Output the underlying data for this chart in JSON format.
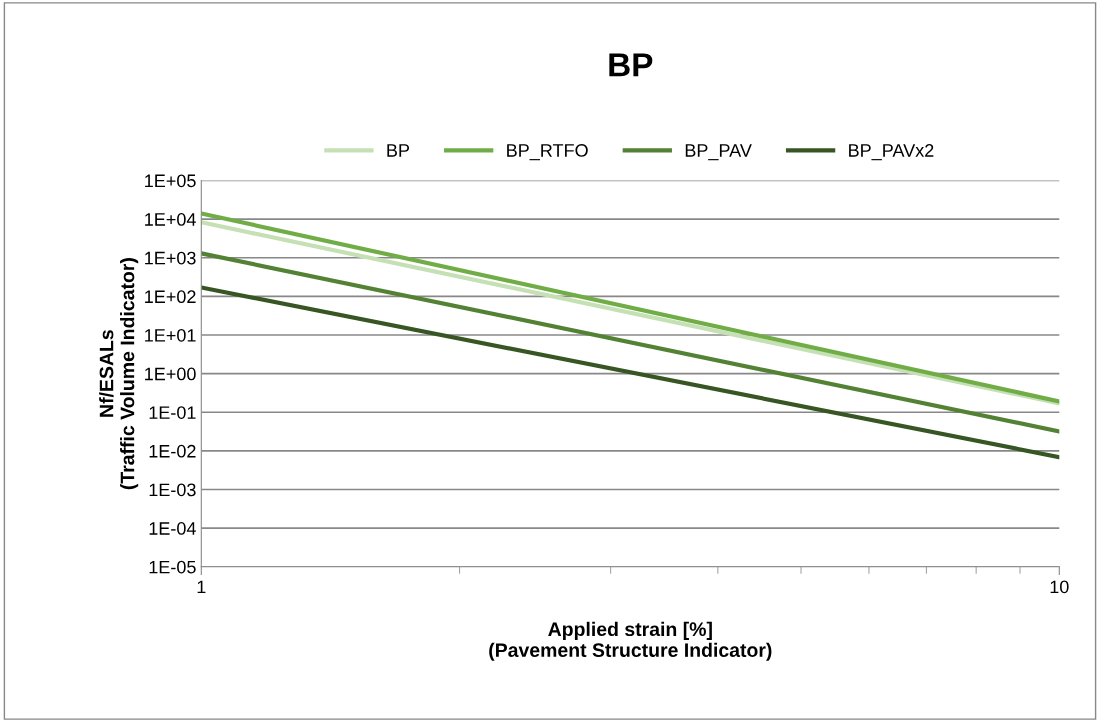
{
  "chart_data": {
    "type": "line",
    "title": "BP",
    "xlabel": "Applied strain [%]\n(Pavement Structure Indicator)",
    "ylabel": "Nf/ESALs\n(Traffic Volume Indicator)",
    "x": [
      1,
      10
    ],
    "series": [
      {
        "name": "BP",
        "color": "#c5e0b4",
        "values": [
          8300,
          0.17
        ]
      },
      {
        "name": "BP_RTFO",
        "color": "#70ad47",
        "values": [
          14000,
          0.19
        ]
      },
      {
        "name": "BP_PAV",
        "color": "#548235",
        "values": [
          1300,
          0.032
        ]
      },
      {
        "name": "BP_PAVx2",
        "color": "#375623",
        "values": [
          170,
          0.0069
        ]
      }
    ],
    "log": "xy",
    "xlim": [
      1,
      10
    ],
    "xticks": [
      1,
      10
    ],
    "ylim": [
      1e-05,
      100000
    ],
    "yticks": [
      {
        "value": 1e-05,
        "label": "1E-05"
      },
      {
        "value": 0.0001,
        "label": "1E-04"
      },
      {
        "value": 0.001,
        "label": "1E-03"
      },
      {
        "value": 0.01,
        "label": "1E-02"
      },
      {
        "value": 0.1,
        "label": "1E-01"
      },
      {
        "value": 1,
        "label": "1E+00"
      },
      {
        "value": 10,
        "label": "1E+01"
      },
      {
        "value": 100,
        "label": "1E+02"
      },
      {
        "value": 1000,
        "label": "1E+03"
      },
      {
        "value": 10000,
        "label": "1E+04"
      },
      {
        "value": 100000,
        "label": "1E+05"
      }
    ],
    "grid": "y",
    "legend": "top",
    "marker": "none",
    "line_style": "solid"
  }
}
